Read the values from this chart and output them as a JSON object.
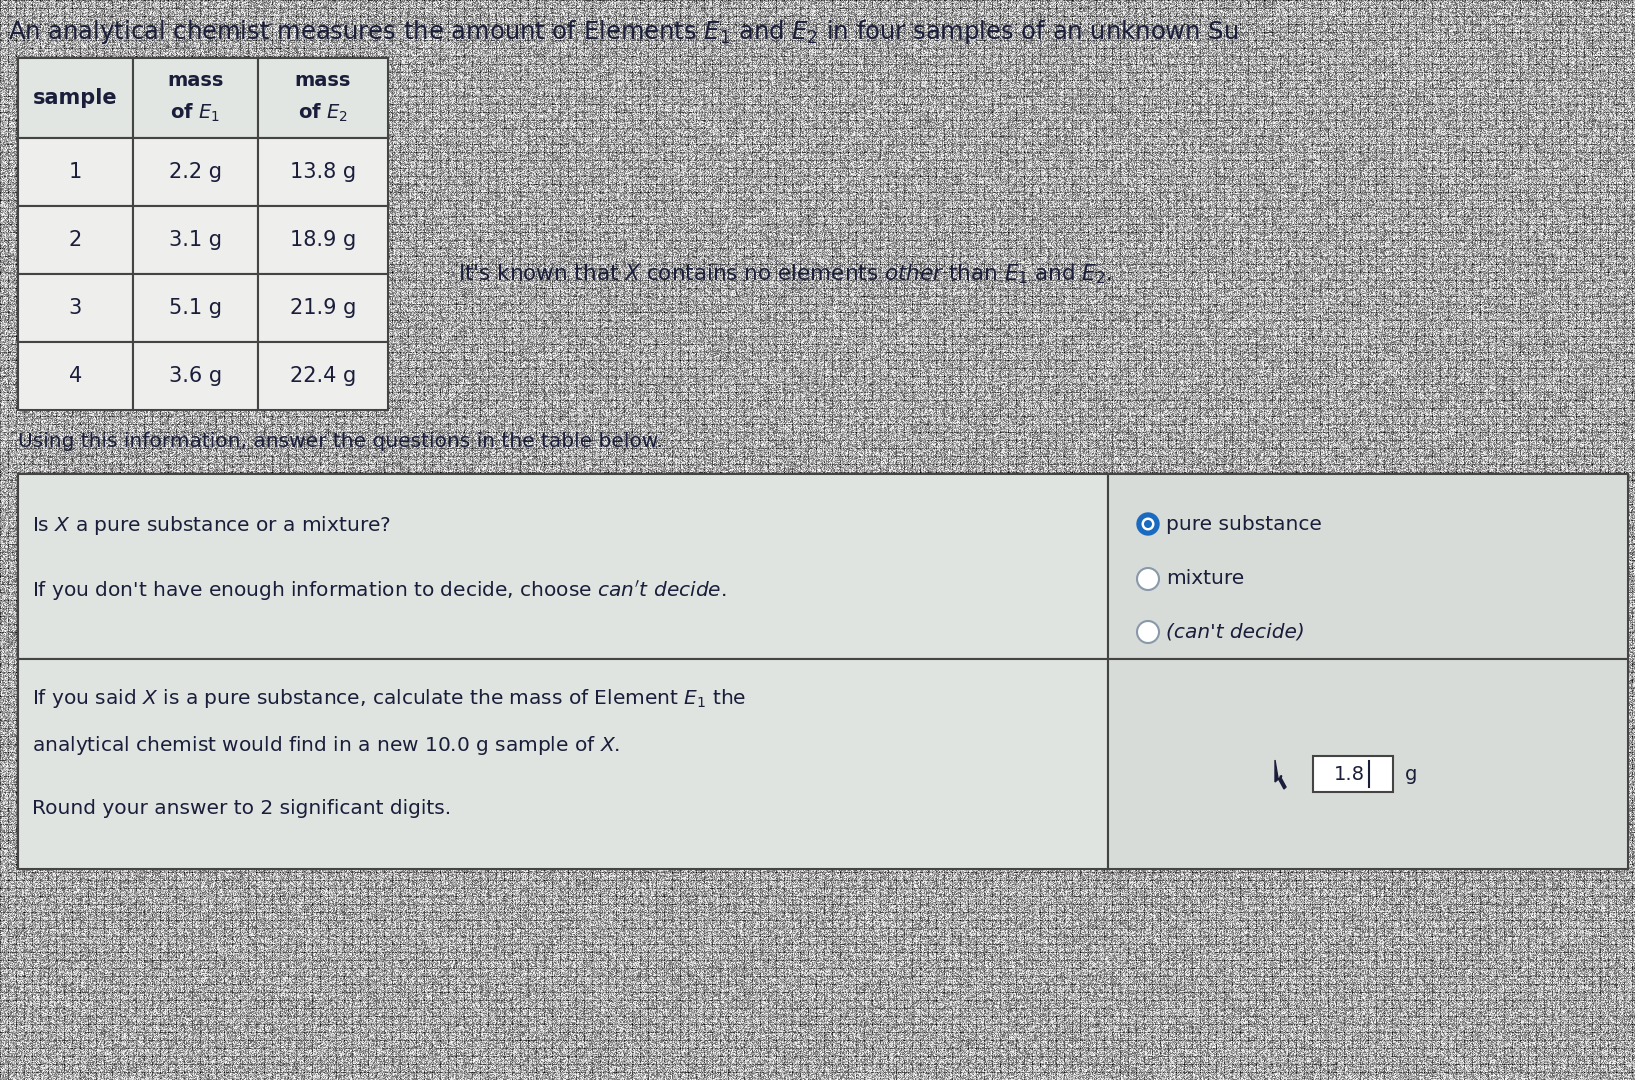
{
  "title": "An analytical chemist measures the amount of Elements $E_1$ and $E_2$ in four samples of an unknown Su",
  "bg_color": "#c8cdc8",
  "table1_rows": [
    [
      "1",
      "2.2 g",
      "13.8 g"
    ],
    [
      "2",
      "3.1 g",
      "18.9 g"
    ],
    [
      "3",
      "5.1 g",
      "21.9 g"
    ],
    [
      "4",
      "3.6 g",
      "22.4 g"
    ]
  ],
  "q1_right_options": [
    "pure substance",
    "mixture",
    "(can't decide)"
  ],
  "q1_selected": 0,
  "q2_answer": "1.8",
  "q2_unit": "g",
  "font_color": "#1a1e3a",
  "border_color": "#444444",
  "cell_bg_light": "#e2e6e2",
  "cell_bg_white": "#eeeeed",
  "ans_table_left_bg": "#e0e4e0",
  "ans_table_right_bg": "#d8dcd8",
  "radio_blue": "#1a6bbf"
}
